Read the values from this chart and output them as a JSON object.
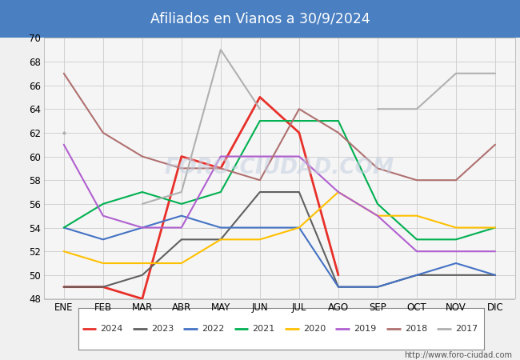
{
  "title": "Afiliados en Vianos a 30/9/2024",
  "title_bg_color": "#4a7fc1",
  "title_text_color": "white",
  "months": [
    "ENE",
    "FEB",
    "MAR",
    "ABR",
    "MAY",
    "JUN",
    "JUL",
    "AGO",
    "SEP",
    "OCT",
    "NOV",
    "DIC"
  ],
  "ylim": [
    48,
    70
  ],
  "yticks": [
    48,
    50,
    52,
    54,
    56,
    58,
    60,
    62,
    64,
    66,
    68,
    70
  ],
  "series": [
    {
      "year": "2024",
      "data": [
        49,
        49,
        48,
        60,
        59,
        65,
        62,
        50,
        null,
        null,
        null,
        null
      ],
      "color": "#e8302a",
      "linewidth": 2.0
    },
    {
      "year": "2023",
      "data": [
        49,
        49,
        50,
        53,
        53,
        57,
        57,
        49,
        49,
        50,
        50,
        50
      ],
      "color": "#606060",
      "linewidth": 1.5
    },
    {
      "year": "2022",
      "data": [
        54,
        53,
        54,
        55,
        54,
        54,
        54,
        49,
        49,
        50,
        51,
        50
      ],
      "color": "#4472c4",
      "linewidth": 1.5
    },
    {
      "year": "2021",
      "data": [
        54,
        56,
        57,
        56,
        57,
        63,
        63,
        63,
        56,
        53,
        53,
        54
      ],
      "color": "#00b050",
      "linewidth": 1.5
    },
    {
      "year": "2020",
      "data": [
        52,
        51,
        51,
        51,
        53,
        53,
        54,
        57,
        55,
        55,
        54,
        54
      ],
      "color": "#ffc000",
      "linewidth": 1.5
    },
    {
      "year": "2019",
      "data": [
        61,
        55,
        54,
        54,
        60,
        60,
        60,
        57,
        55,
        52,
        52,
        52
      ],
      "color": "#b060d0",
      "linewidth": 1.5
    },
    {
      "year": "2018",
      "data": [
        67,
        62,
        60,
        59,
        59,
        58,
        64,
        62,
        59,
        58,
        58,
        61
      ],
      "color": "#b07070",
      "linewidth": 1.5
    },
    {
      "year": "2017",
      "data": [
        62,
        null,
        56,
        57,
        69,
        64,
        null,
        null,
        64,
        64,
        67,
        67
      ],
      "color": "#b0b0b0",
      "linewidth": 1.5
    }
  ],
  "watermark_url": "http://www.foro-ciudad.com",
  "grid_color": "#d0d0d0",
  "bg_color": "#f0f0f0",
  "plot_bg_color": "#f5f5f5"
}
